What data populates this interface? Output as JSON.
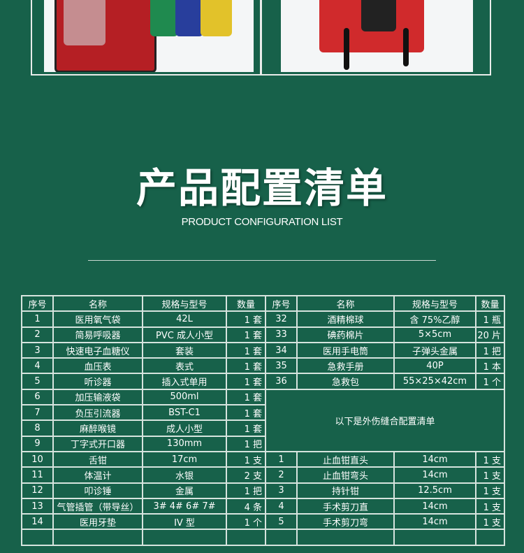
{
  "title": "产品配置清单",
  "subtitle": "PRODUCT CONFIGURATION LIST",
  "headers": [
    "序号",
    "名称",
    "规格与型号",
    "数量"
  ],
  "left_rows": [
    [
      "1",
      "医用氧气袋",
      "42L",
      "1 套"
    ],
    [
      "2",
      "简易呼吸器",
      "PVC 成人小型",
      "1 套"
    ],
    [
      "3",
      "快速电子血糖仪",
      "套装",
      "1 套"
    ],
    [
      "4",
      "血压表",
      "表式",
      "1 套"
    ],
    [
      "5",
      "听诊器",
      "插入式单用",
      "1 套"
    ],
    [
      "6",
      "加压输液袋",
      "500ml",
      "1 套"
    ],
    [
      "7",
      "负压引流器",
      "BST-C1",
      "1 套"
    ],
    [
      "8",
      "麻醉喉镜",
      "成人小型",
      "1 套"
    ],
    [
      "9",
      "丁字式开口器",
      "130mm",
      "1 把"
    ],
    [
      "10",
      "舌钳",
      "17cm",
      "1 支"
    ],
    [
      "11",
      "体温计",
      "水银",
      "2 支"
    ],
    [
      "12",
      "叩诊锤",
      "金属",
      "1 把"
    ],
    [
      "13",
      "气管插管（带导丝）",
      "3# 4# 6# 7#",
      "4 条"
    ],
    [
      "14",
      "医用牙垫",
      "IV 型",
      "1 个"
    ]
  ],
  "right_rows": [
    [
      "32",
      "酒精棉球",
      "含 75%乙醇",
      "1 瓶"
    ],
    [
      "33",
      "碘药棉片",
      "5×5cm",
      "20 片"
    ],
    [
      "34",
      "医用手电筒",
      "子弹头金属",
      "1 把"
    ],
    [
      "35",
      "急救手册",
      "40P",
      "1 本"
    ],
    [
      "36",
      "急救包",
      "55×25×42cm",
      "1 个"
    ]
  ],
  "merged_note": "以下是外伤缝合配置清单",
  "suture_rows": [
    [
      "1",
      "止血钳直头",
      "14cm",
      "1 支"
    ],
    [
      "2",
      "止血钳弯头",
      "14cm",
      "1 支"
    ],
    [
      "3",
      "持针钳",
      "12.5cm",
      "1 支"
    ],
    [
      "4",
      "手术剪刀直",
      "14cm",
      "1 支"
    ],
    [
      "5",
      "手术剪刀弯",
      "14cm",
      "1 支"
    ]
  ],
  "colors": {
    "background": "#17614a",
    "border": "#d6e4de"
  }
}
